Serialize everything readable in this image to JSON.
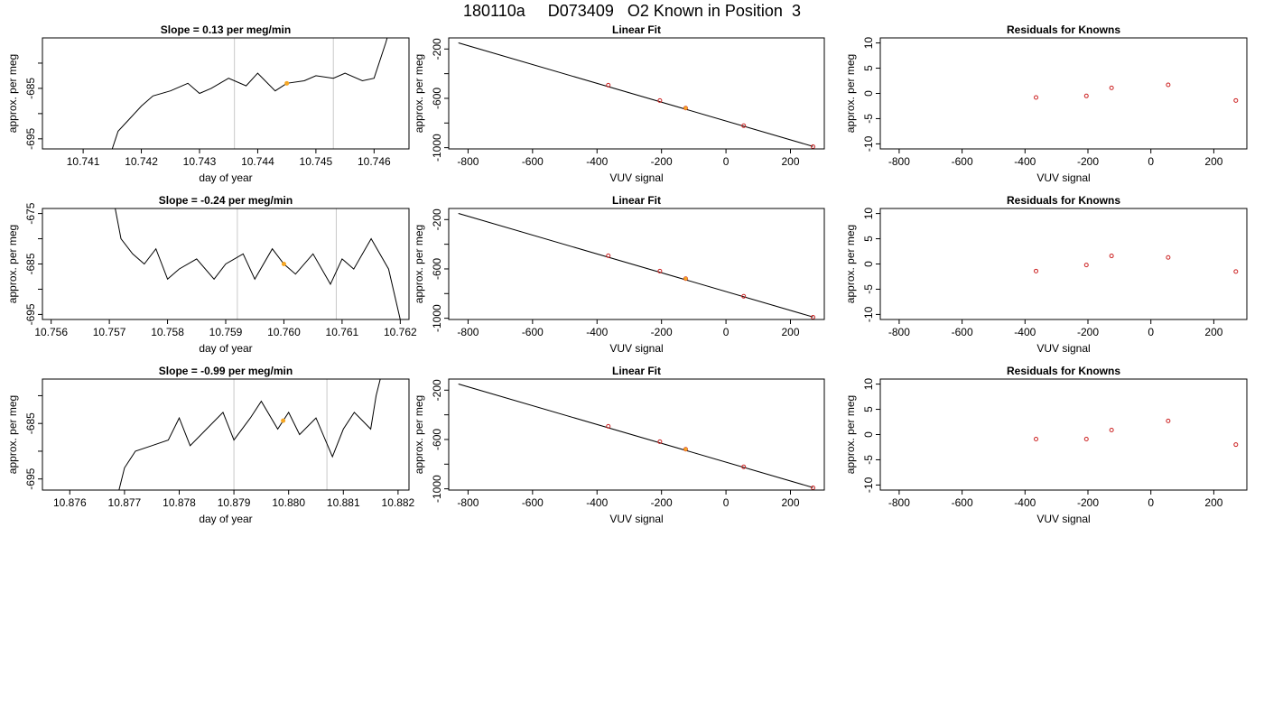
{
  "page": {
    "title": "180110a     D073409   O2 Known in Position  3"
  },
  "colors": {
    "trace": "#000000",
    "vline": "#c8c8c8",
    "marker": "#f5a623",
    "fit_line": "#000000",
    "known_point": "#cc2222",
    "residual_point": "#cc2222"
  },
  "chart_data": [
    {
      "type": "line",
      "title": "Slope =  0.13  per meg/min",
      "xlabel": "day of year",
      "ylabel": "approx. per meg",
      "xlim": [
        10.7403,
        10.7466
      ],
      "ylim": [
        -697,
        -675
      ],
      "xticks": [
        10.741,
        10.742,
        10.743,
        10.744,
        10.745,
        10.746
      ],
      "xtick_labels": [
        "10.741",
        "10.742",
        "10.743",
        "10.744",
        "10.745",
        "10.746"
      ],
      "yticks": [
        -695,
        -690,
        -685,
        -680
      ],
      "ytick_labels": [
        "-695",
        "",
        "-685",
        ""
      ],
      "vlines": [
        10.7436,
        10.7453
      ],
      "marker": {
        "x": 10.7445,
        "y": -684.0
      },
      "series": [
        {
          "x": [
            10.7415,
            10.7416,
            10.7418,
            10.742,
            10.7422,
            10.7425,
            10.7428,
            10.743,
            10.7432,
            10.7435,
            10.7438,
            10.744,
            10.7443,
            10.7445,
            10.7448,
            10.745,
            10.7453,
            10.7455,
            10.7458,
            10.746,
            10.7462,
            10.7463
          ],
          "y": [
            -697.0,
            -693.5,
            -691.0,
            -688.5,
            -686.5,
            -685.5,
            -684.0,
            -686.0,
            -685.0,
            -683.0,
            -684.5,
            -682.0,
            -685.5,
            -684.0,
            -683.5,
            -682.5,
            -683.0,
            -682.0,
            -683.5,
            -683.0,
            -676.0,
            -672.0
          ]
        }
      ]
    },
    {
      "type": "scatter",
      "title": "Linear Fit",
      "xlabel": "VUV signal",
      "ylabel": "approx. per meg",
      "xlim": [
        -860,
        305
      ],
      "ylim": [
        -1010,
        -110
      ],
      "xticks": [
        -800,
        -600,
        -400,
        -200,
        0,
        200
      ],
      "xtick_labels": [
        "-800",
        "-600",
        "-400",
        "-200",
        "0",
        "200"
      ],
      "yticks": [
        -1000,
        -800,
        -600,
        -400,
        -200
      ],
      "ytick_labels": [
        "-1000",
        "",
        "-600",
        "",
        "-200"
      ],
      "fit_line": {
        "x": [
          -830,
          270
        ],
        "y": [
          -150,
          -990
        ]
      },
      "points": {
        "x": [
          -365,
          -205,
          -125,
          55,
          270
        ],
        "y": [
          -493,
          -618,
          -679,
          -822,
          -992
        ]
      },
      "marker": {
        "x": -125,
        "y": -679
      }
    },
    {
      "type": "scatter",
      "title": "Residuals for Knowns",
      "xlabel": "VUV signal",
      "ylabel": "approx. per meg",
      "xlim": [
        -860,
        305
      ],
      "ylim": [
        -11,
        11
      ],
      "xticks": [
        -800,
        -600,
        -400,
        -200,
        0,
        200
      ],
      "xtick_labels": [
        "-800",
        "-600",
        "-400",
        "-200",
        "0",
        "200"
      ],
      "yticks": [
        -10,
        -5,
        0,
        5,
        10
      ],
      "ytick_labels": [
        "-10",
        "-5",
        "0",
        "5",
        "10"
      ],
      "points": {
        "x": [
          -365,
          -205,
          -125,
          55,
          270
        ],
        "y": [
          -0.8,
          -0.5,
          1.1,
          1.7,
          -1.4
        ]
      }
    },
    {
      "type": "line",
      "title": "Slope =  -0.24  per meg/min",
      "xlabel": "day of year",
      "ylabel": "approx. per meg",
      "xlim": [
        10.75585,
        10.76215
      ],
      "ylim": [
        -696,
        -674
      ],
      "xticks": [
        10.756,
        10.757,
        10.758,
        10.759,
        10.76,
        10.761,
        10.762
      ],
      "xtick_labels": [
        "10.756",
        "10.757",
        "10.758",
        "10.759",
        "10.760",
        "10.761",
        "10.762"
      ],
      "yticks": [
        -695,
        -690,
        -685,
        -680,
        -675
      ],
      "ytick_labels": [
        "-695",
        "",
        "-685",
        "",
        "-675"
      ],
      "vlines": [
        10.7592,
        10.7609
      ],
      "marker": {
        "x": 10.76,
        "y": -685.0
      },
      "series": [
        {
          "x": [
            10.7571,
            10.7572,
            10.7574,
            10.7576,
            10.7578,
            10.758,
            10.7582,
            10.7585,
            10.7588,
            10.759,
            10.7593,
            10.7595,
            10.7598,
            10.76,
            10.7602,
            10.7605,
            10.7608,
            10.761,
            10.7612,
            10.7615,
            10.7618,
            10.762
          ],
          "y": [
            -674.0,
            -680.0,
            -683.0,
            -685.0,
            -682.0,
            -688.0,
            -686.0,
            -684.0,
            -688.0,
            -685.0,
            -683.0,
            -688.0,
            -682.0,
            -685.0,
            -687.0,
            -683.0,
            -689.0,
            -684.0,
            -686.0,
            -680.0,
            -686.0,
            -696.0
          ]
        }
      ]
    },
    {
      "type": "scatter",
      "title": "Linear Fit",
      "xlabel": "VUV signal",
      "ylabel": "approx. per meg",
      "xlim": [
        -860,
        305
      ],
      "ylim": [
        -1010,
        -110
      ],
      "xticks": [
        -800,
        -600,
        -400,
        -200,
        0,
        200
      ],
      "xtick_labels": [
        "-800",
        "-600",
        "-400",
        "-200",
        "0",
        "200"
      ],
      "yticks": [
        -1000,
        -800,
        -600,
        -400,
        -200
      ],
      "ytick_labels": [
        "-1000",
        "",
        "-600",
        "",
        "-200"
      ],
      "fit_line": {
        "x": [
          -830,
          270
        ],
        "y": [
          -150,
          -990
        ]
      },
      "points": {
        "x": [
          -365,
          -205,
          -125,
          55,
          270
        ],
        "y": [
          -493,
          -618,
          -679,
          -822,
          -992
        ]
      },
      "marker": {
        "x": -125,
        "y": -679
      }
    },
    {
      "type": "scatter",
      "title": "Residuals for Knowns",
      "xlabel": "VUV signal",
      "ylabel": "approx. per meg",
      "xlim": [
        -860,
        305
      ],
      "ylim": [
        -11,
        11
      ],
      "xticks": [
        -800,
        -600,
        -400,
        -200,
        0,
        200
      ],
      "xtick_labels": [
        "-800",
        "-600",
        "-400",
        "-200",
        "0",
        "200"
      ],
      "yticks": [
        -10,
        -5,
        0,
        5,
        10
      ],
      "ytick_labels": [
        "-10",
        "-5",
        "0",
        "5",
        "10"
      ],
      "points": {
        "x": [
          -365,
          -205,
          -125,
          55,
          270
        ],
        "y": [
          -1.4,
          -0.2,
          1.6,
          1.3,
          -1.5
        ]
      }
    },
    {
      "type": "line",
      "title": "Slope =  -0.99  per meg/min",
      "xlabel": "day of year",
      "ylabel": "approx. per meg",
      "xlim": [
        10.8755,
        10.8822
      ],
      "ylim": [
        -697,
        -677
      ],
      "xticks": [
        10.876,
        10.877,
        10.878,
        10.879,
        10.88,
        10.881,
        10.882
      ],
      "xtick_labels": [
        "10.876",
        "10.877",
        "10.878",
        "10.879",
        "10.880",
        "10.881",
        "10.882"
      ],
      "yticks": [
        -695,
        -690,
        -685,
        -680
      ],
      "ytick_labels": [
        "-695",
        "",
        "-685",
        ""
      ],
      "vlines": [
        10.879,
        10.8807
      ],
      "marker": {
        "x": 10.8799,
        "y": -684.5
      },
      "series": [
        {
          "x": [
            10.8769,
            10.877,
            10.8772,
            10.8775,
            10.8778,
            10.878,
            10.8782,
            10.8785,
            10.8788,
            10.879,
            10.8793,
            10.8795,
            10.8798,
            10.88,
            10.8802,
            10.8805,
            10.8808,
            10.881,
            10.8812,
            10.8815,
            10.8816,
            10.8817
          ],
          "y": [
            -697.0,
            -693.0,
            -690.0,
            -689.0,
            -688.0,
            -684.0,
            -689.0,
            -686.0,
            -683.0,
            -688.0,
            -684.0,
            -681.0,
            -686.0,
            -683.0,
            -687.0,
            -684.0,
            -691.0,
            -686.0,
            -683.0,
            -686.0,
            -680.0,
            -676.0
          ]
        }
      ]
    },
    {
      "type": "scatter",
      "title": "Linear Fit",
      "xlabel": "VUV signal",
      "ylabel": "approx. per meg",
      "xlim": [
        -860,
        305
      ],
      "ylim": [
        -1010,
        -110
      ],
      "xticks": [
        -800,
        -600,
        -400,
        -200,
        0,
        200
      ],
      "xtick_labels": [
        "-800",
        "-600",
        "-400",
        "-200",
        "0",
        "200"
      ],
      "yticks": [
        -1000,
        -800,
        -600,
        -400,
        -200
      ],
      "ytick_labels": [
        "-1000",
        "",
        "-600",
        "",
        "-200"
      ],
      "fit_line": {
        "x": [
          -830,
          270
        ],
        "y": [
          -150,
          -990
        ]
      },
      "points": {
        "x": [
          -365,
          -205,
          -125,
          55,
          270
        ],
        "y": [
          -493,
          -618,
          -679,
          -822,
          -992
        ]
      },
      "marker": {
        "x": -125,
        "y": -679
      }
    },
    {
      "type": "scatter",
      "title": "Residuals for Knowns",
      "xlabel": "VUV signal",
      "ylabel": "approx. per meg",
      "xlim": [
        -860,
        305
      ],
      "ylim": [
        -11,
        11
      ],
      "xticks": [
        -800,
        -600,
        -400,
        -200,
        0,
        200
      ],
      "xtick_labels": [
        "-800",
        "-600",
        "-400",
        "-200",
        "0",
        "200"
      ],
      "yticks": [
        -10,
        -5,
        0,
        5,
        10
      ],
      "ytick_labels": [
        "-10",
        "-5",
        "0",
        "5",
        "10"
      ],
      "points": {
        "x": [
          -365,
          -205,
          -125,
          55,
          270
        ],
        "y": [
          -0.9,
          -0.9,
          0.9,
          2.7,
          -2.0
        ]
      }
    }
  ]
}
